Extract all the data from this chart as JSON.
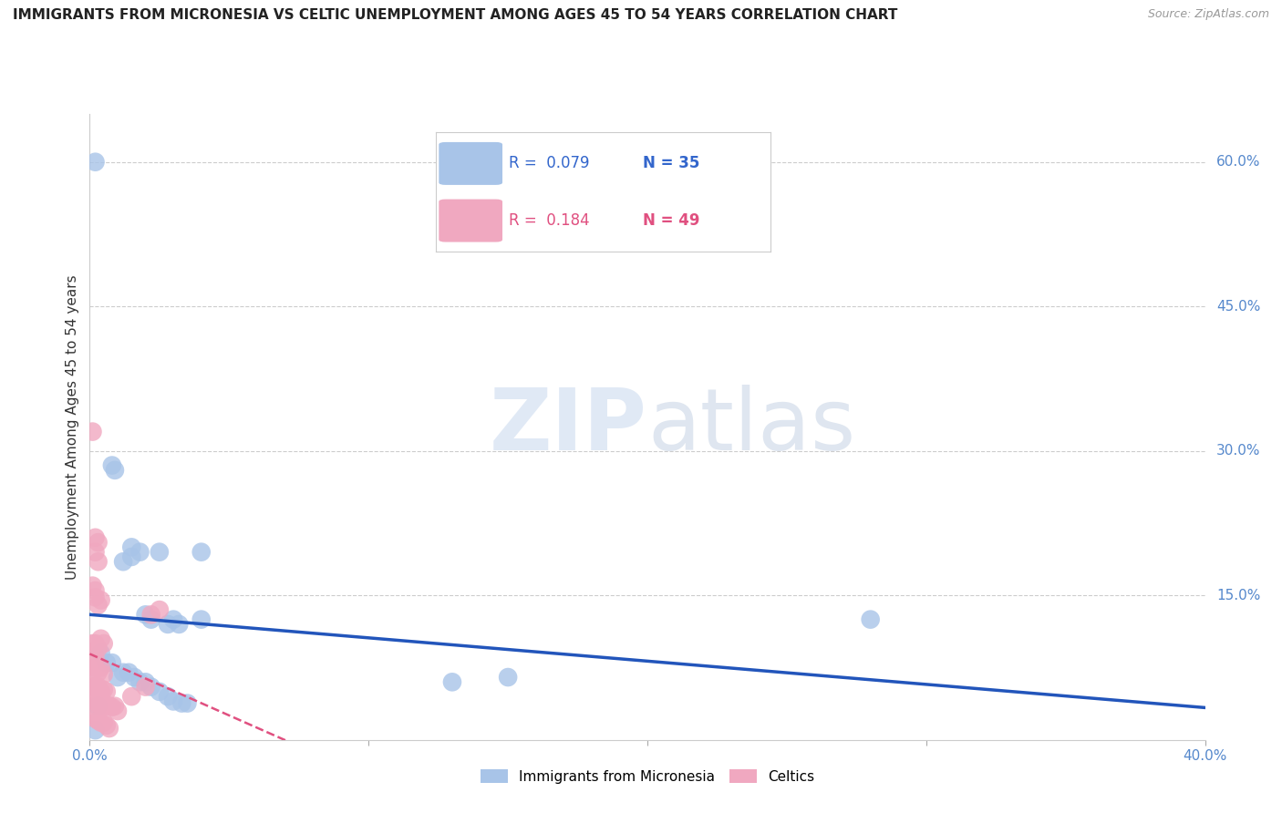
{
  "title": "IMMIGRANTS FROM MICRONESIA VS CELTIC UNEMPLOYMENT AMONG AGES 45 TO 54 YEARS CORRELATION CHART",
  "source": "Source: ZipAtlas.com",
  "ylabel": "Unemployment Among Ages 45 to 54 years",
  "right_yticks": [
    "60.0%",
    "45.0%",
    "30.0%",
    "15.0%"
  ],
  "right_ytick_vals": [
    0.6,
    0.45,
    0.3,
    0.15
  ],
  "watermark_zip": "ZIP",
  "watermark_atlas": "atlas",
  "legend_blue_r": "0.079",
  "legend_blue_n": "35",
  "legend_pink_r": "0.184",
  "legend_pink_n": "49",
  "legend_blue_label": "Immigrants from Micronesia",
  "legend_pink_label": "Celtics",
  "blue_color": "#a8c4e8",
  "pink_color": "#f0a8c0",
  "blue_line_color": "#2255bb",
  "pink_line_color": "#e05080",
  "blue_scatter": [
    [
      0.002,
      0.6
    ],
    [
      0.008,
      0.285
    ],
    [
      0.009,
      0.28
    ],
    [
      0.015,
      0.2
    ],
    [
      0.018,
      0.195
    ],
    [
      0.04,
      0.195
    ],
    [
      0.025,
      0.195
    ],
    [
      0.015,
      0.19
    ],
    [
      0.012,
      0.185
    ],
    [
      0.02,
      0.13
    ],
    [
      0.022,
      0.125
    ],
    [
      0.028,
      0.12
    ],
    [
      0.03,
      0.125
    ],
    [
      0.032,
      0.12
    ],
    [
      0.04,
      0.125
    ],
    [
      0.15,
      0.065
    ],
    [
      0.28,
      0.125
    ],
    [
      0.004,
      0.09
    ],
    [
      0.006,
      0.08
    ],
    [
      0.008,
      0.08
    ],
    [
      0.01,
      0.065
    ],
    [
      0.012,
      0.07
    ],
    [
      0.014,
      0.07
    ],
    [
      0.016,
      0.065
    ],
    [
      0.018,
      0.06
    ],
    [
      0.02,
      0.06
    ],
    [
      0.022,
      0.055
    ],
    [
      0.025,
      0.05
    ],
    [
      0.028,
      0.045
    ],
    [
      0.03,
      0.04
    ],
    [
      0.033,
      0.038
    ],
    [
      0.035,
      0.038
    ],
    [
      0.003,
      0.035
    ],
    [
      0.13,
      0.06
    ],
    [
      0.002,
      0.01
    ]
  ],
  "pink_scatter": [
    [
      0.001,
      0.32
    ],
    [
      0.002,
      0.21
    ],
    [
      0.002,
      0.195
    ],
    [
      0.003,
      0.205
    ],
    [
      0.003,
      0.185
    ],
    [
      0.001,
      0.16
    ],
    [
      0.002,
      0.155
    ],
    [
      0.002,
      0.148
    ],
    [
      0.003,
      0.14
    ],
    [
      0.004,
      0.145
    ],
    [
      0.001,
      0.1
    ],
    [
      0.002,
      0.1
    ],
    [
      0.003,
      0.095
    ],
    [
      0.004,
      0.105
    ],
    [
      0.005,
      0.1
    ],
    [
      0.001,
      0.085
    ],
    [
      0.002,
      0.085
    ],
    [
      0.001,
      0.07
    ],
    [
      0.002,
      0.075
    ],
    [
      0.003,
      0.07
    ],
    [
      0.004,
      0.075
    ],
    [
      0.005,
      0.068
    ],
    [
      0.001,
      0.055
    ],
    [
      0.002,
      0.055
    ],
    [
      0.003,
      0.055
    ],
    [
      0.004,
      0.05
    ],
    [
      0.005,
      0.052
    ],
    [
      0.006,
      0.05
    ],
    [
      0.001,
      0.04
    ],
    [
      0.002,
      0.04
    ],
    [
      0.003,
      0.038
    ],
    [
      0.004,
      0.038
    ],
    [
      0.005,
      0.035
    ],
    [
      0.006,
      0.036
    ],
    [
      0.007,
      0.035
    ],
    [
      0.008,
      0.034
    ],
    [
      0.009,
      0.035
    ],
    [
      0.01,
      0.03
    ],
    [
      0.015,
      0.045
    ],
    [
      0.02,
      0.055
    ],
    [
      0.022,
      0.13
    ],
    [
      0.025,
      0.135
    ],
    [
      0.001,
      0.025
    ],
    [
      0.002,
      0.022
    ],
    [
      0.003,
      0.02
    ],
    [
      0.004,
      0.018
    ],
    [
      0.005,
      0.018
    ],
    [
      0.006,
      0.015
    ],
    [
      0.007,
      0.012
    ]
  ],
  "xlim": [
    0.0,
    0.4
  ],
  "ylim": [
    0.0,
    0.65
  ],
  "xticks": [
    0.0,
    0.1,
    0.2,
    0.3,
    0.4
  ],
  "xtick_labels": [
    "0.0%",
    "",
    "",
    "",
    "40.0%"
  ],
  "background_color": "#ffffff",
  "grid_color": "#cccccc"
}
